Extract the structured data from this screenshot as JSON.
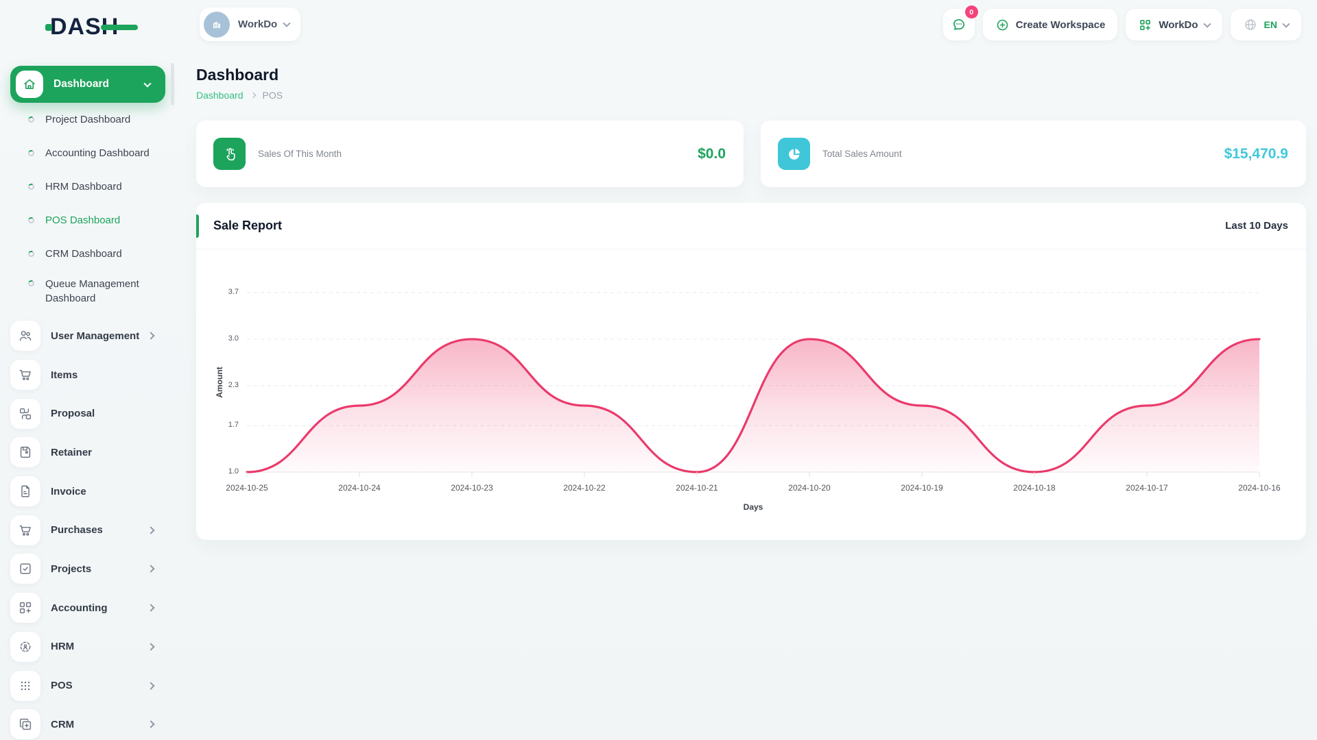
{
  "brand": {
    "logo_text": "DASH"
  },
  "header": {
    "workspace": {
      "name": "WorkDo"
    },
    "messages": {
      "badge": "0"
    },
    "create_workspace": {
      "label": "Create Workspace"
    },
    "workspace_menu": {
      "label": "WorkDo"
    },
    "language": {
      "code": "EN"
    }
  },
  "sidebar": {
    "dashboard": {
      "label": "Dashboard"
    },
    "dashboard_items": [
      {
        "label": "Project Dashboard",
        "active": false
      },
      {
        "label": "Accounting Dashboard",
        "active": false
      },
      {
        "label": "HRM Dashboard",
        "active": false
      },
      {
        "label": "POS Dashboard",
        "active": true
      },
      {
        "label": "CRM Dashboard",
        "active": false
      },
      {
        "label": "Queue Management Dashboard",
        "active": false
      }
    ],
    "sections": [
      {
        "label": "User Management",
        "expandable": true
      },
      {
        "label": "Items",
        "expandable": false
      },
      {
        "label": "Proposal",
        "expandable": false
      },
      {
        "label": "Retainer",
        "expandable": false
      },
      {
        "label": "Invoice",
        "expandable": false
      },
      {
        "label": "Purchases",
        "expandable": true
      },
      {
        "label": "Projects",
        "expandable": true
      },
      {
        "label": "Accounting",
        "expandable": true
      },
      {
        "label": "HRM",
        "expandable": true
      },
      {
        "label": "POS",
        "expandable": true
      },
      {
        "label": "CRM",
        "expandable": true
      }
    ]
  },
  "page": {
    "title": "Dashboard",
    "breadcrumb_root": "Dashboard",
    "breadcrumb_current": "POS"
  },
  "stats": [
    {
      "label": "Sales Of This Month",
      "value": "$0.0",
      "icon": "tap-icon",
      "accent": "#1ca35c"
    },
    {
      "label": "Total Sales Amount",
      "value": "$15,470.9",
      "icon": "pie-chart-icon",
      "accent": "#41c8dc"
    }
  ],
  "report": {
    "title": "Sale Report",
    "range": "Last 10 Days"
  },
  "chart_data": {
    "type": "area",
    "title": "Sale Report",
    "x": [
      "2024-10-25",
      "2024-10-24",
      "2024-10-23",
      "2024-10-22",
      "2024-10-21",
      "2024-10-20",
      "2024-10-19",
      "2024-10-18",
      "2024-10-17",
      "2024-10-16"
    ],
    "values": [
      1.0,
      2.0,
      3.0,
      2.0,
      1.0,
      3.0,
      2.0,
      1.0,
      2.0,
      3.0
    ],
    "xlabel": "Days",
    "ylabel": "Amount",
    "yticks": [
      1.0,
      1.7,
      2.3,
      3.0,
      3.7
    ],
    "ylim": [
      1.0,
      3.7
    ],
    "line_color": "#ea3a6b",
    "fill_color": "#ec3f6e",
    "grid": "dashed-horizontal",
    "curve": "smooth",
    "legend": false
  }
}
